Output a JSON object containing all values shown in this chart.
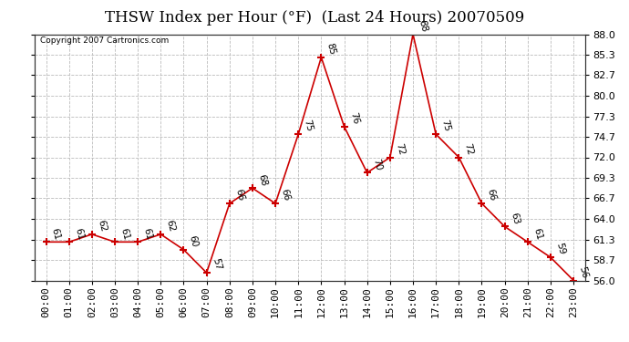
{
  "title": "THSW Index per Hour (°F)  (Last 24 Hours) 20070509",
  "copyright_text": "Copyright 2007 Cartronics.com",
  "x_labels": [
    "00:00",
    "01:00",
    "02:00",
    "03:00",
    "04:00",
    "05:00",
    "06:00",
    "07:00",
    "08:00",
    "09:00",
    "10:00",
    "11:00",
    "12:00",
    "13:00",
    "14:00",
    "15:00",
    "16:00",
    "17:00",
    "18:00",
    "19:00",
    "20:00",
    "21:00",
    "22:00",
    "23:00"
  ],
  "y_values": [
    61,
    61,
    62,
    61,
    61,
    62,
    60,
    57,
    66,
    68,
    66,
    75,
    85,
    76,
    70,
    72,
    88,
    75,
    72,
    66,
    63,
    61,
    59,
    56
  ],
  "ylim_min": 56.0,
  "ylim_max": 88.0,
  "yticks": [
    56.0,
    58.7,
    61.3,
    64.0,
    66.7,
    69.3,
    72.0,
    74.7,
    77.3,
    80.0,
    82.7,
    85.3,
    88.0
  ],
  "line_color": "#cc0000",
  "marker_color": "#cc0000",
  "bg_color": "#ffffff",
  "grid_color": "#bbbbbb",
  "title_fontsize": 12,
  "label_fontsize": 8,
  "annot_fontsize": 7.5
}
